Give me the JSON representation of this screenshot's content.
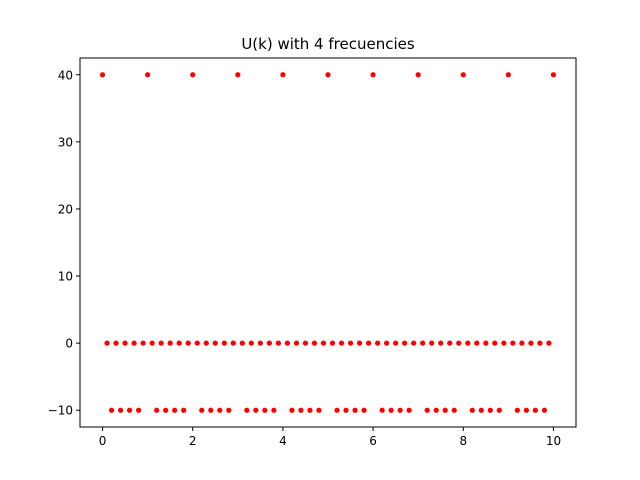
{
  "chart_data": {
    "type": "scatter",
    "title": "U(k) with 4 frecuencies",
    "xlabel": "",
    "ylabel": "",
    "xlim": [
      -0.5,
      10.5
    ],
    "ylim": [
      -12.5,
      42.5
    ],
    "x_ticks": [
      0,
      2,
      4,
      6,
      8,
      10
    ],
    "x_tick_labels": [
      "0",
      "2",
      "4",
      "6",
      "8",
      "10"
    ],
    "y_ticks": [
      -10,
      0,
      10,
      20,
      30,
      40
    ],
    "y_tick_labels": [
      "−10",
      "0",
      "10",
      "20",
      "30",
      "40"
    ],
    "grid": false,
    "legend": "none",
    "marker_color": "#ff0000",
    "series": [
      {
        "x": [
          0.0,
          0.1,
          0.2,
          0.3,
          0.4,
          0.5,
          0.6,
          0.7,
          0.8,
          0.9,
          1.0,
          1.1,
          1.2,
          1.3,
          1.4,
          1.5,
          1.6,
          1.7,
          1.8,
          1.9,
          2.0,
          2.1,
          2.2,
          2.3,
          2.4,
          2.5,
          2.6,
          2.7,
          2.8,
          2.9,
          3.0,
          3.1,
          3.2,
          3.3,
          3.4,
          3.5,
          3.6,
          3.7,
          3.8,
          3.9,
          4.0,
          4.1,
          4.2,
          4.3,
          4.4,
          4.5,
          4.6,
          4.7,
          4.8,
          4.9,
          5.0,
          5.1,
          5.2,
          5.3,
          5.4,
          5.5,
          5.6,
          5.7,
          5.8,
          5.9,
          6.0,
          6.1,
          6.2,
          6.3,
          6.4,
          6.5,
          6.6,
          6.7,
          6.8,
          6.9,
          7.0,
          7.1,
          7.2,
          7.3,
          7.4,
          7.5,
          7.6,
          7.7,
          7.8,
          7.9,
          8.0,
          8.1,
          8.2,
          8.3,
          8.4,
          8.5,
          8.6,
          8.7,
          8.8,
          8.9,
          9.0,
          9.1,
          9.2,
          9.3,
          9.4,
          9.5,
          9.6,
          9.7,
          9.8,
          9.9,
          10.0
        ],
        "y": [
          40,
          0,
          -10,
          0,
          -10,
          0,
          -10,
          0,
          -10,
          0,
          40,
          0,
          -10,
          0,
          -10,
          0,
          -10,
          0,
          -10,
          0,
          40,
          0,
          -10,
          0,
          -10,
          0,
          -10,
          0,
          -10,
          0,
          40,
          0,
          -10,
          0,
          -10,
          0,
          -10,
          0,
          -10,
          0,
          40,
          0,
          -10,
          0,
          -10,
          0,
          -10,
          0,
          -10,
          0,
          40,
          0,
          -10,
          0,
          -10,
          0,
          -10,
          0,
          -10,
          0,
          40,
          0,
          -10,
          0,
          -10,
          0,
          -10,
          0,
          -10,
          0,
          40,
          0,
          -10,
          0,
          -10,
          0,
          -10,
          0,
          -10,
          0,
          40,
          0,
          -10,
          0,
          -10,
          0,
          -10,
          0,
          -10,
          0,
          40,
          0,
          -10,
          0,
          -10,
          0,
          -10,
          0,
          -10,
          0,
          40
        ]
      }
    ]
  }
}
